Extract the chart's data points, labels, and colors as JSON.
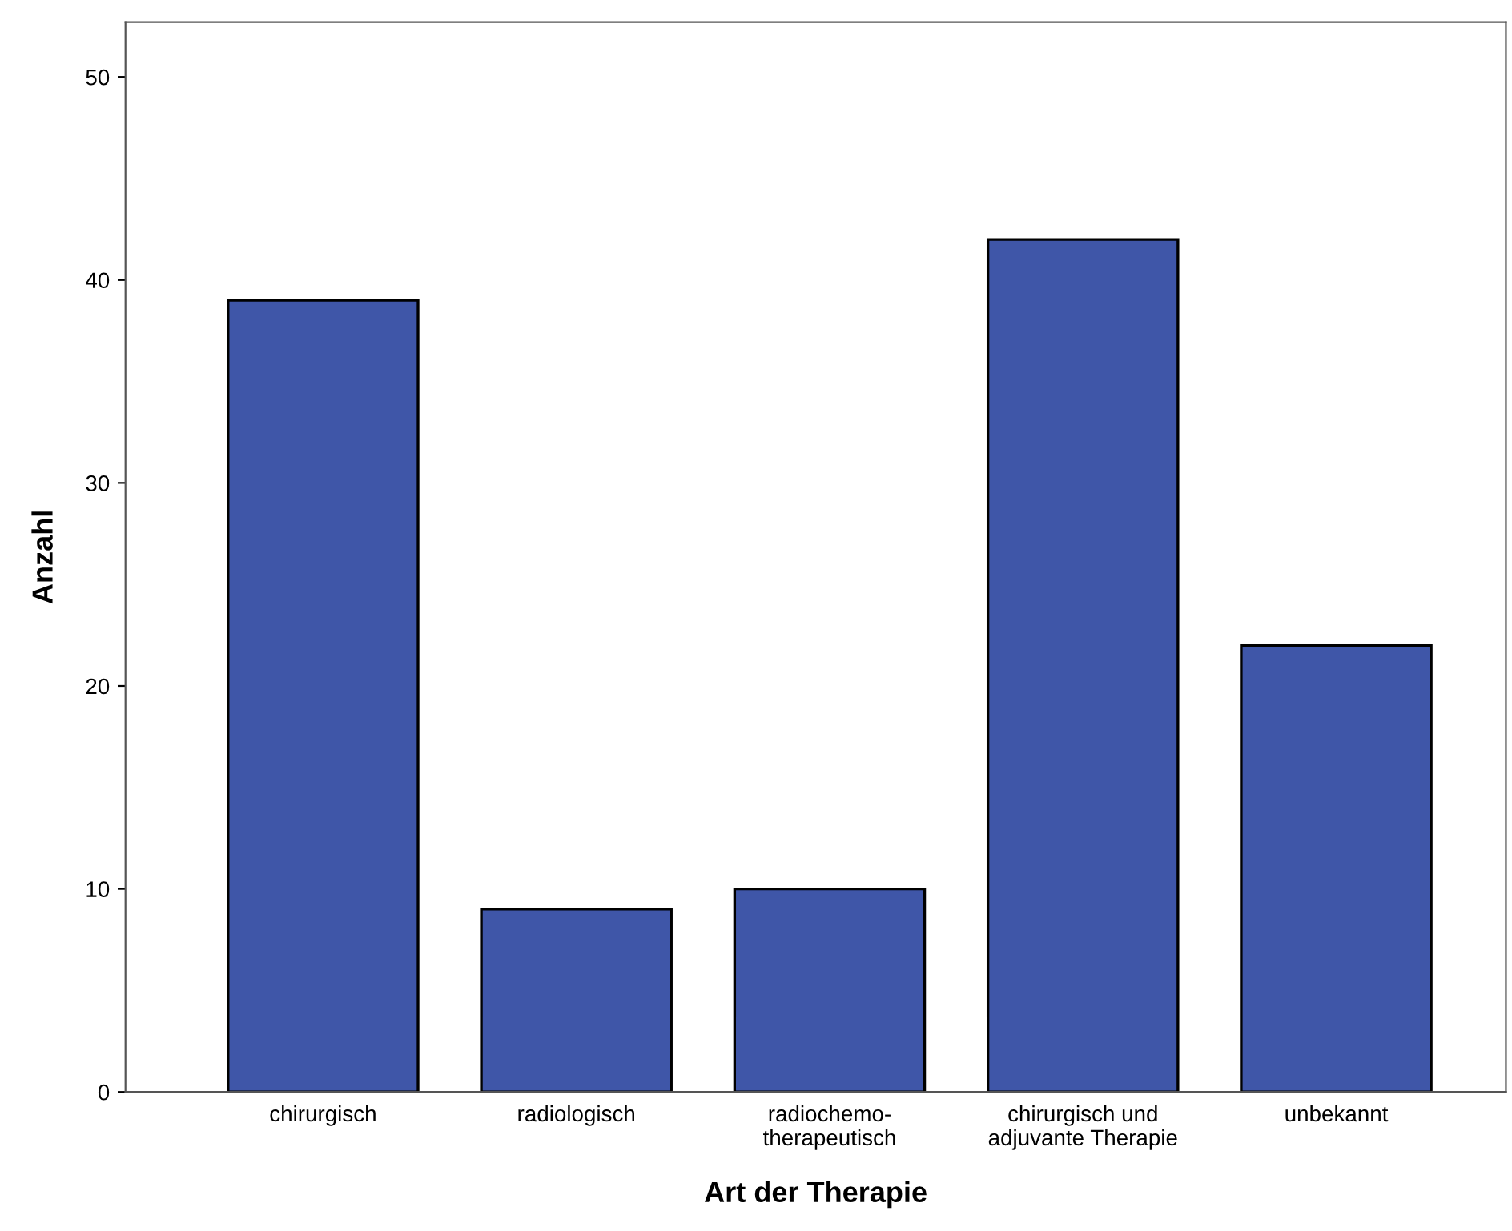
{
  "chart_data": {
    "type": "bar",
    "xlabel": "Art der Therapie",
    "ylabel": "Anzahl",
    "categories": [
      "chirurgisch",
      "radiologisch",
      "radiochemo-\ntherapeutisch",
      "chirurgisch und\nadjuvante Therapie",
      "unbekannt"
    ],
    "values": [
      39,
      9,
      10,
      42,
      22
    ],
    "color": "#3f56a8",
    "ylim": [
      0,
      52.7
    ],
    "yticks": [
      0,
      10,
      20,
      30,
      40,
      50
    ],
    "grid": false,
    "legend": false
  }
}
